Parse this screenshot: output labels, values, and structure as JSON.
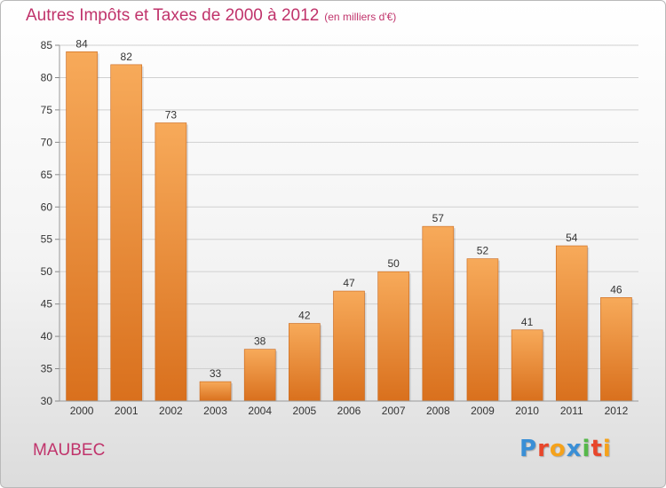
{
  "page": {
    "title": "Autres Impôts et Taxes de 2000 à 2012",
    "unit": "(en milliers d'€)",
    "commune": "MAUBEC"
  },
  "logo": {
    "text": "Proxiti",
    "letters": [
      {
        "ch": "P",
        "color": "#3a8fd6"
      },
      {
        "ch": "r",
        "color": "#e8462b"
      },
      {
        "ch": "o",
        "color": "#f5a21b"
      },
      {
        "ch": "x",
        "color": "#3a8fd6"
      },
      {
        "ch": "i",
        "color": "#56b84a"
      },
      {
        "ch": "t",
        "color": "#e8462b"
      },
      {
        "ch": "i",
        "color": "#f5a21b"
      }
    ]
  },
  "colors": {
    "title": "#c0336b",
    "bar_top": "#f7aa5a",
    "bar_bottom": "#d9701d",
    "grid": "#d0d0d0",
    "axis_text": "#333333"
  },
  "chart_data": {
    "type": "bar",
    "title": "Autres Impôts et Taxes de 2000 à 2012",
    "subtitle": "(en milliers d'€)",
    "categories": [
      "2000",
      "2001",
      "2002",
      "2003",
      "2004",
      "2005",
      "2006",
      "2007",
      "2008",
      "2009",
      "2010",
      "2011",
      "2012"
    ],
    "values": [
      84,
      82,
      73,
      33,
      38,
      42,
      47,
      50,
      57,
      52,
      41,
      54,
      46
    ],
    "ylim": [
      30,
      85
    ],
    "yticks": [
      30,
      35,
      40,
      45,
      50,
      55,
      60,
      65,
      70,
      75,
      80,
      85
    ],
    "grid": true,
    "data_labels": true
  }
}
